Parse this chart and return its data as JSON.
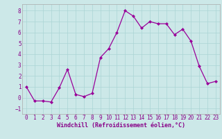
{
  "x": [
    0,
    1,
    2,
    3,
    4,
    5,
    6,
    7,
    8,
    9,
    10,
    11,
    12,
    13,
    14,
    15,
    16,
    17,
    18,
    19,
    20,
    21,
    22,
    23
  ],
  "y": [
    1.0,
    -0.3,
    -0.3,
    -0.4,
    0.9,
    2.6,
    0.3,
    0.1,
    0.4,
    3.7,
    4.5,
    6.0,
    8.0,
    7.5,
    6.4,
    7.0,
    6.8,
    6.8,
    5.8,
    6.3,
    5.2,
    2.9,
    1.3,
    1.5
  ],
  "line_color": "#990099",
  "marker": "D",
  "marker_size": 2.0,
  "linewidth": 0.9,
  "xlabel": "Windchill (Refroidissement éolien,°C)",
  "xlabel_fontsize": 6.0,
  "xlim": [
    -0.5,
    23.5
  ],
  "ylim": [
    -1.5,
    8.6
  ],
  "yticks": [
    -1,
    0,
    1,
    2,
    3,
    4,
    5,
    6,
    7,
    8
  ],
  "xticks": [
    0,
    1,
    2,
    3,
    4,
    5,
    6,
    7,
    8,
    9,
    10,
    11,
    12,
    13,
    14,
    15,
    16,
    17,
    18,
    19,
    20,
    21,
    22,
    23
  ],
  "grid_color": "#aad4d4",
  "bg_color": "#cce8e8",
  "tick_fontsize": 5.5,
  "tick_color": "#880088",
  "spine_color": "#aaaaaa"
}
